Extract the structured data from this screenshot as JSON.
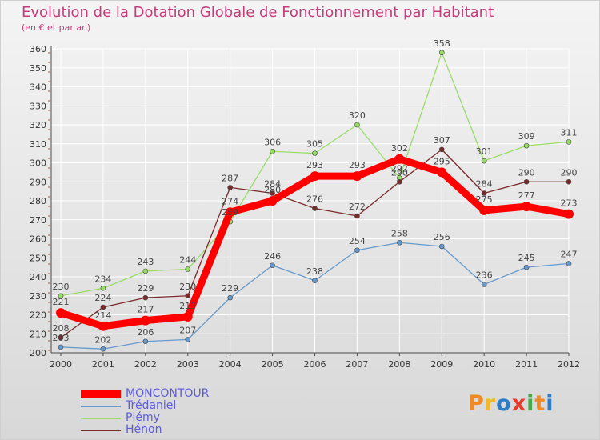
{
  "header": {
    "title": "Evolution de la Dotation Globale de Fonctionnement par Habitant",
    "subtitle": "(en € et par an)"
  },
  "logo": {
    "text": "Proxiti",
    "colors": [
      "#f08a24",
      "#f0b928",
      "#2e7cc6",
      "#e83a2a",
      "#4aa94a",
      "#f08a24",
      "#2e7cc6"
    ]
  },
  "colors": {
    "text": "#c43c7a",
    "grid": "#ffffff",
    "axis": "#4a4a4a",
    "tick_marks": "#e04040"
  },
  "chart_data": {
    "type": "line",
    "title": "Evolution de la Dotation Globale de Fonctionnement par Habitant",
    "subtitle": "(en € et par an)",
    "x": [
      "2000",
      "2001",
      "2002",
      "2003",
      "2004",
      "2005",
      "2006",
      "2007",
      "2008",
      "2009",
      "2010",
      "2011",
      "2012"
    ],
    "ylim": [
      200,
      360
    ],
    "yticks": [
      200,
      210,
      220,
      230,
      240,
      250,
      260,
      270,
      280,
      290,
      300,
      310,
      320,
      330,
      340,
      350,
      360
    ],
    "grid": true,
    "legend_position": "bottom-left",
    "series": [
      {
        "name": "MONCONTOUR",
        "color": "#ff0000",
        "values": [
          221,
          214,
          217,
          219,
          274,
          280,
          293,
          293,
          302,
          295,
          275,
          277,
          273
        ]
      },
      {
        "name": "Trédaniel",
        "color": "#6699cc",
        "values": [
          203,
          202,
          206,
          207,
          229,
          246,
          238,
          254,
          258,
          256,
          236,
          245,
          247
        ]
      },
      {
        "name": "Plémy",
        "color": "#99dd66",
        "values": [
          230,
          234,
          243,
          244,
          269,
          306,
          305,
          320,
          292,
          358,
          301,
          309,
          311
        ]
      },
      {
        "name": "Hénon",
        "color": "#7a2a2a",
        "values": [
          208,
          224,
          229,
          230,
          287,
          284,
          276,
          272,
          290,
          307,
          284,
          290,
          290
        ]
      }
    ]
  }
}
